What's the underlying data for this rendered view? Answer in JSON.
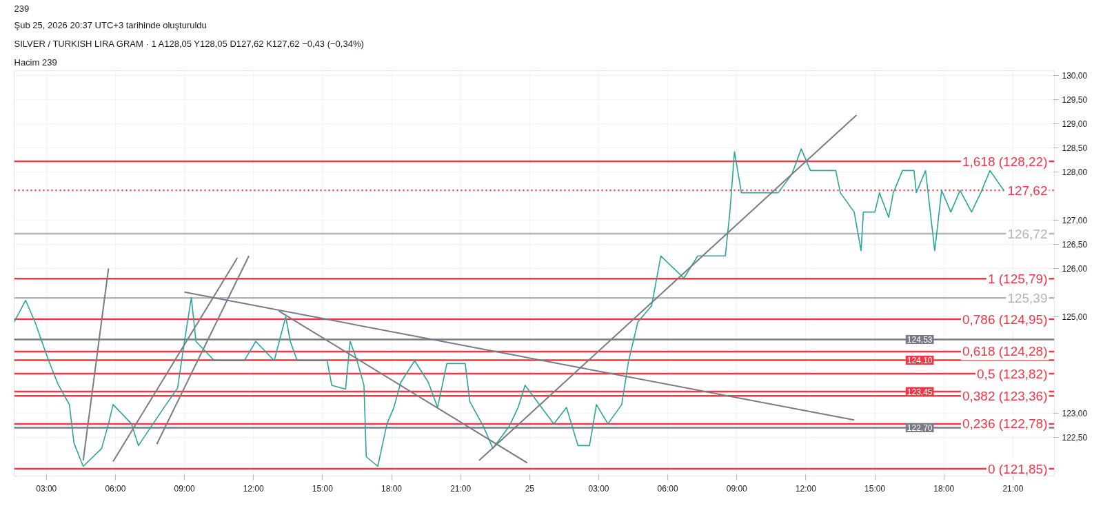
{
  "chart_data": {
    "type": "line",
    "title": "SILVER / TURKISH LIRA GRAM · 1   A128,05  Y128,05  D127,62  K127,62  −0,43 (−0,34%)",
    "subtitle": "Hacim 239",
    "annotations": [
      "Şub 25, 2026 20:37 UTC+3 tarihinde oluşturuldu",
      "239"
    ],
    "series": [
      {
        "color": "#26a69a",
        "x": [
          "2026-02-24T01:36",
          "2026-02-24T02:06",
          "2026-02-24T02:30",
          "2026-02-24T03:06",
          "2026-02-24T03:30",
          "2026-02-24T04:00",
          "2026-02-24T04:12",
          "2026-02-24T04:36",
          "2026-02-24T05:24",
          "2026-02-24T05:42",
          "2026-02-24T05:54",
          "2026-02-24T06:42",
          "2026-02-24T07:00",
          "2026-02-24T08:12",
          "2026-02-24T08:42",
          "2026-02-24T09:00",
          "2026-02-24T09:18",
          "2026-02-24T09:30",
          "2026-02-24T10:18",
          "2026-02-24T11:36",
          "2026-02-24T12:06",
          "2026-02-24T12:54",
          "2026-02-24T13:24",
          "2026-02-24T13:36",
          "2026-02-24T13:54",
          "2026-02-24T15:12",
          "2026-02-24T15:24",
          "2026-02-24T16:00",
          "2026-02-24T16:12",
          "2026-02-24T16:30",
          "2026-02-24T16:48",
          "2026-02-24T16:54",
          "2026-02-24T17:24",
          "2026-02-24T17:48",
          "2026-02-24T18:06",
          "2026-02-24T18:24",
          "2026-02-24T19:00",
          "2026-02-24T19:36",
          "2026-02-24T20:00",
          "2026-02-24T20:24",
          "2026-02-24T21:12",
          "2026-02-24T21:24",
          "2026-02-24T22:00",
          "2026-02-24T22:24",
          "2026-02-24T23:06",
          "2026-02-24T23:30",
          "2026-02-24T23:48",
          "2026-02-25T01:03",
          "2026-02-25T01:36",
          "2026-02-25T02:06",
          "2026-02-25T02:36",
          "2026-02-25T02:54",
          "2026-02-25T03:24",
          "2026-02-25T04:00",
          "2026-02-25T04:18",
          "2026-02-25T04:42",
          "2026-02-25T05:18",
          "2026-02-25T05:42",
          "2026-02-25T06:42",
          "2026-02-25T07:18",
          "2026-02-25T08:30",
          "2026-02-25T08:42",
          "2026-02-25T08:54",
          "2026-02-25T09:12",
          "2026-02-25T10:24",
          "2026-02-25T10:48",
          "2026-02-25T11:24",
          "2026-02-25T11:48",
          "2026-02-25T12:12",
          "2026-02-25T13:18",
          "2026-02-25T13:30",
          "2026-02-25T14:06",
          "2026-02-25T14:24",
          "2026-02-25T14:30",
          "2026-02-25T15:00",
          "2026-02-25T15:12",
          "2026-02-25T15:36",
          "2026-02-25T15:48",
          "2026-02-25T16:12",
          "2026-02-25T16:42",
          "2026-02-25T16:48",
          "2026-02-25T17:12",
          "2026-02-25T17:36",
          "2026-02-25T17:54",
          "2026-02-25T18:18",
          "2026-02-25T18:42",
          "2026-02-25T19:12",
          "2026-02-25T19:36",
          "2026-02-25T20:00",
          "2026-02-25T20:36"
        ],
        "values": [
          124.89,
          125.34,
          124.9,
          124.09,
          123.61,
          123.18,
          122.38,
          121.9,
          122.27,
          122.78,
          123.18,
          122.78,
          122.33,
          123.18,
          123.52,
          124.49,
          125.4,
          124.49,
          124.09,
          124.09,
          124.49,
          124.09,
          125.0,
          124.49,
          124.09,
          124.09,
          123.58,
          123.5,
          124.49,
          124.09,
          123.58,
          122.1,
          121.9,
          122.78,
          123.12,
          123.64,
          124.09,
          123.64,
          123.12,
          124.03,
          124.03,
          123.24,
          122.72,
          122.27,
          122.72,
          123.12,
          123.58,
          122.78,
          123.12,
          122.33,
          122.33,
          123.18,
          122.78,
          123.18,
          124.09,
          124.89,
          125.23,
          126.26,
          125.8,
          126.26,
          126.26,
          127.17,
          128.42,
          127.57,
          127.57,
          127.57,
          127.96,
          128.48,
          128.03,
          128.03,
          127.57,
          127.17,
          126.37,
          127.17,
          127.17,
          127.57,
          127.06,
          127.57,
          128.03,
          128.03,
          127.57,
          128.03,
          126.37,
          127.62,
          127.17,
          127.62,
          127.17,
          127.57,
          128.03,
          127.62
        ]
      },
      {
        "type": "line",
        "color": "#787b86",
        "x": [
          "2026-02-24T04:36",
          "2026-02-24T05:42"
        ],
        "values": [
          122.02,
          126.0
        ]
      },
      {
        "type": "line",
        "color": "#787b86",
        "x": [
          "2026-02-24T05:54",
          "2026-02-24T11:18"
        ],
        "values": [
          122.0,
          126.22
        ]
      },
      {
        "type": "line",
        "color": "#787b86",
        "x": [
          "2026-02-24T07:48",
          "2026-02-24T11:48"
        ],
        "values": [
          122.36,
          126.26
        ]
      },
      {
        "type": "line",
        "color": "#787b86",
        "x": [
          "2026-02-24T09:00",
          "2026-02-25T14:06"
        ],
        "values": [
          125.51,
          122.86
        ]
      },
      {
        "type": "line",
        "color": "#787b86",
        "x": [
          "2026-02-24T13:06",
          "2026-02-24T23:54"
        ],
        "values": [
          125.12,
          121.97
        ]
      },
      {
        "type": "line",
        "color": "#787b86",
        "x": [
          "2026-02-24T21:48",
          "2026-02-25T14:12"
        ],
        "values": [
          122.02,
          129.18
        ]
      }
    ],
    "xlim": [
      "2026-02-24T01:36",
      "2026-02-25T22:48"
    ],
    "xticks": [
      {
        "value": "2026-02-24T03:00",
        "label": "03:00"
      },
      {
        "value": "2026-02-24T06:00",
        "label": "06:00"
      },
      {
        "value": "2026-02-24T09:00",
        "label": "09:00"
      },
      {
        "value": "2026-02-24T12:00",
        "label": "12:00"
      },
      {
        "value": "2026-02-24T15:00",
        "label": "15:00"
      },
      {
        "value": "2026-02-24T18:00",
        "label": "18:00"
      },
      {
        "value": "2026-02-24T21:00",
        "label": "21:00"
      },
      {
        "value": "2026-02-25T00:00",
        "label": "25"
      },
      {
        "value": "2026-02-25T03:00",
        "label": "03:00"
      },
      {
        "value": "2026-02-25T06:00",
        "label": "06:00"
      },
      {
        "value": "2026-02-25T09:00",
        "label": "09:00"
      },
      {
        "value": "2026-02-25T12:00",
        "label": "12:00"
      },
      {
        "value": "2026-02-25T15:00",
        "label": "15:00"
      },
      {
        "value": "2026-02-25T18:00",
        "label": "18:00"
      },
      {
        "value": "2026-02-25T21:00",
        "label": "21:00"
      }
    ],
    "ylim": [
      121.7,
      130.1
    ],
    "yticks": [
      {
        "value": 122.5,
        "label": "122,50"
      },
      {
        "value": 123,
        "label": "123,00"
      },
      {
        "value": 125,
        "label": "125,00"
      },
      {
        "value": 126,
        "label": "126,00"
      },
      {
        "value": 126.5,
        "label": "126,50"
      },
      {
        "value": 127,
        "label": "127,00"
      },
      {
        "value": 128,
        "label": "128,00"
      },
      {
        "value": 128.5,
        "label": "128,50"
      },
      {
        "value": 129,
        "label": "129,00"
      },
      {
        "value": 129.5,
        "label": "129,50"
      },
      {
        "value": 130,
        "label": "130,00"
      }
    ],
    "ref_lines": [
      {
        "axis": "y",
        "value": 128.22,
        "label": "1,618 (128,22)",
        "color": "#f23645"
      },
      {
        "axis": "y",
        "value": 125.79,
        "label": "1 (125,79)",
        "color": "#f23645"
      },
      {
        "axis": "y",
        "value": 124.95,
        "label": "0,786 (124,95)",
        "color": "#f23645"
      },
      {
        "axis": "y",
        "value": 124.28,
        "label": "0,618 (124,28)",
        "color": "#f23645"
      },
      {
        "axis": "y",
        "value": 123.82,
        "label": "0,5 (123,82)",
        "color": "#f23645"
      },
      {
        "axis": "y",
        "value": 123.36,
        "label": "0,382 (123,36)",
        "color": "#f23645"
      },
      {
        "axis": "y",
        "value": 122.78,
        "label": "0,236 (122,78)",
        "color": "#f23645"
      },
      {
        "axis": "y",
        "value": 121.85,
        "label": "0 (121,85)",
        "color": "#f23645"
      },
      {
        "axis": "y",
        "value": 127.62,
        "label": "127,62",
        "color": "#f23645",
        "line_style": "dotted"
      },
      {
        "axis": "y",
        "value": 126.72,
        "label": "126,72",
        "color": "#b2b5be"
      },
      {
        "axis": "y",
        "value": 125.39,
        "label": "125,39",
        "color": "#b2b5be"
      },
      {
        "axis": "y",
        "value": 124.53,
        "label": "124,53",
        "color": "#787b86"
      },
      {
        "axis": "y",
        "value": 124.1,
        "label": "124,10",
        "color": "#f23645"
      },
      {
        "axis": "y",
        "value": 123.45,
        "label": "123,45",
        "color": "#f23645"
      },
      {
        "axis": "y",
        "value": 122.7,
        "label": "122,70",
        "color": "#787b86"
      }
    ],
    "grid": true
  }
}
